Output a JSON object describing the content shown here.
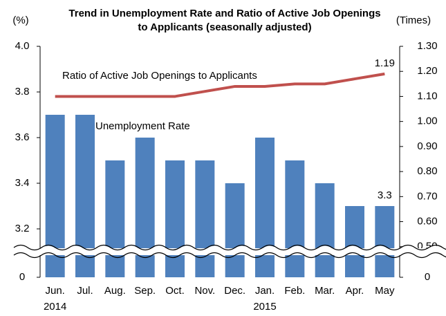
{
  "chart_data": {
    "type": "bar-line",
    "title": "Trend in Unemployment Rate and Ratio of Active Job Openings to Applicants (seasonally adjusted)",
    "y_unit": "(%)",
    "y2_unit": "(Times)",
    "categories": [
      "Jun.",
      "Jul.",
      "Aug.",
      "Sep.",
      "Oct.",
      "Nov.",
      "Dec.",
      "Jan.",
      "Feb.",
      "Mar.",
      "Apr.",
      "May"
    ],
    "category_years": [
      "2014",
      null,
      null,
      null,
      null,
      null,
      null,
      "2015",
      null,
      null,
      null,
      null
    ],
    "series": [
      {
        "name": "Unemployment Rate",
        "type": "bar",
        "color": "#4f81bd",
        "axis": "y",
        "values": [
          3.7,
          3.7,
          3.5,
          3.6,
          3.5,
          3.5,
          3.4,
          3.6,
          3.5,
          3.4,
          3.3,
          3.3
        ]
      },
      {
        "name": "Ratio of Active Job Openings to Applicants",
        "type": "line",
        "color": "#c0504d",
        "axis": "y2",
        "values": [
          1.1,
          1.1,
          1.1,
          1.1,
          1.1,
          1.12,
          1.14,
          1.14,
          1.15,
          1.15,
          1.17,
          1.19
        ]
      }
    ],
    "data_labels": "last",
    "ylim": [
      0,
      4.0
    ],
    "ybreak": [
      0,
      3.1
    ],
    "yticks": [
      0,
      3.2,
      3.4,
      3.6,
      3.8,
      {
        "value": 4.0,
        "label": "4.0"
      }
    ],
    "y2lim": [
      0,
      1.3
    ],
    "y2break": [
      0,
      0.48
    ],
    "y2ticks": [
      0,
      {
        "value": 0.5,
        "label": "0.50"
      },
      {
        "value": 0.6,
        "label": "0.60"
      },
      {
        "value": 0.7,
        "label": "0.70"
      },
      {
        "value": 0.8,
        "label": "0.80"
      },
      {
        "value": 0.9,
        "label": "0.90"
      },
      {
        "value": 1.0,
        "label": "1.00"
      },
      {
        "value": 1.1,
        "label": "1.10"
      },
      {
        "value": 1.2,
        "label": "1.20"
      },
      {
        "value": 1.3,
        "label": "1.30"
      }
    ],
    "grid": false
  }
}
